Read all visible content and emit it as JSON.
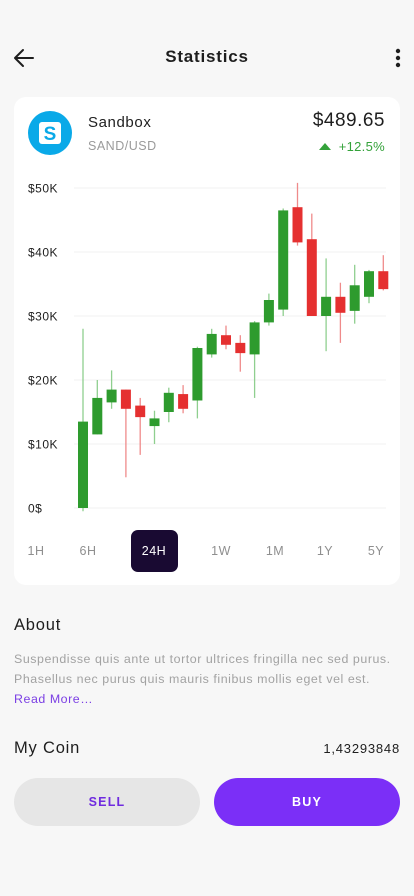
{
  "header": {
    "title": "Statistics",
    "back_icon": "arrow-left-icon",
    "menu_icon": "more-vertical-icon"
  },
  "coin": {
    "name": "Sandbox",
    "pair": "SAND/USD",
    "price": "$489.65",
    "change": "+12.5%",
    "logo_letter": "S",
    "logo_color": "#0aa9e8"
  },
  "chart_data": {
    "type": "candlestick",
    "y_tick_labels": [
      "$50K",
      "$40K",
      "$30K",
      "$20K",
      "$10K",
      "0$"
    ],
    "ylim": [
      0,
      50000
    ],
    "grid": true,
    "up_color": "#2e9b2e",
    "down_color": "#e53030",
    "candles": [
      {
        "open": 0,
        "close": 13500,
        "high": 28000,
        "low": -500
      },
      {
        "open": 11500,
        "close": 17200,
        "high": 20000,
        "low": 11500
      },
      {
        "open": 16500,
        "close": 18500,
        "high": 21500,
        "low": 15500
      },
      {
        "open": 18500,
        "close": 15500,
        "high": 18500,
        "low": 4800
      },
      {
        "open": 16000,
        "close": 14200,
        "high": 17200,
        "low": 8300
      },
      {
        "open": 12800,
        "close": 14000,
        "high": 15200,
        "low": 10000
      },
      {
        "open": 15000,
        "close": 18000,
        "high": 18800,
        "low": 13400
      },
      {
        "open": 17800,
        "close": 15500,
        "high": 19200,
        "low": 14800
      },
      {
        "open": 16800,
        "close": 25000,
        "high": 25200,
        "low": 14000
      },
      {
        "open": 24000,
        "close": 27200,
        "high": 28000,
        "low": 23500
      },
      {
        "open": 27000,
        "close": 25500,
        "high": 28500,
        "low": 24800
      },
      {
        "open": 25800,
        "close": 24200,
        "high": 27000,
        "low": 21300
      },
      {
        "open": 24000,
        "close": 29000,
        "high": 29200,
        "low": 17200
      },
      {
        "open": 29000,
        "close": 32500,
        "high": 33500,
        "low": 28500
      },
      {
        "open": 31000,
        "close": 46500,
        "high": 46800,
        "low": 30000
      },
      {
        "open": 47000,
        "close": 41500,
        "high": 50800,
        "low": 41000
      },
      {
        "open": 42000,
        "close": 30000,
        "high": 46000,
        "low": 30000
      },
      {
        "open": 30000,
        "close": 33000,
        "high": 39000,
        "low": 24500
      },
      {
        "open": 33000,
        "close": 30500,
        "high": 35200,
        "low": 25800
      },
      {
        "open": 30800,
        "close": 34800,
        "high": 38000,
        "low": 28800
      },
      {
        "open": 33000,
        "close": 37000,
        "high": 37200,
        "low": 32000
      },
      {
        "open": 37000,
        "close": 34200,
        "high": 39500,
        "low": 34000
      }
    ]
  },
  "ranges": {
    "items": [
      "1H",
      "6H",
      "24H",
      "1W",
      "1M",
      "1Y",
      "5Y"
    ],
    "active": "24H"
  },
  "about": {
    "title": "About",
    "text": "Suspendisse quis ante ut tortor ultrices fringilla nec sed purus. Phasellus nec purus quis mauris finibus mollis eget vel est.",
    "read_more": "Read More…"
  },
  "my_coin": {
    "label": "My Coin",
    "value": "1,43293848"
  },
  "actions": {
    "sell": "SELL",
    "buy": "BUY"
  },
  "colors": {
    "accent": "#7b2ff7",
    "active_range_bg": "#190a32",
    "positive": "#34a23a"
  }
}
